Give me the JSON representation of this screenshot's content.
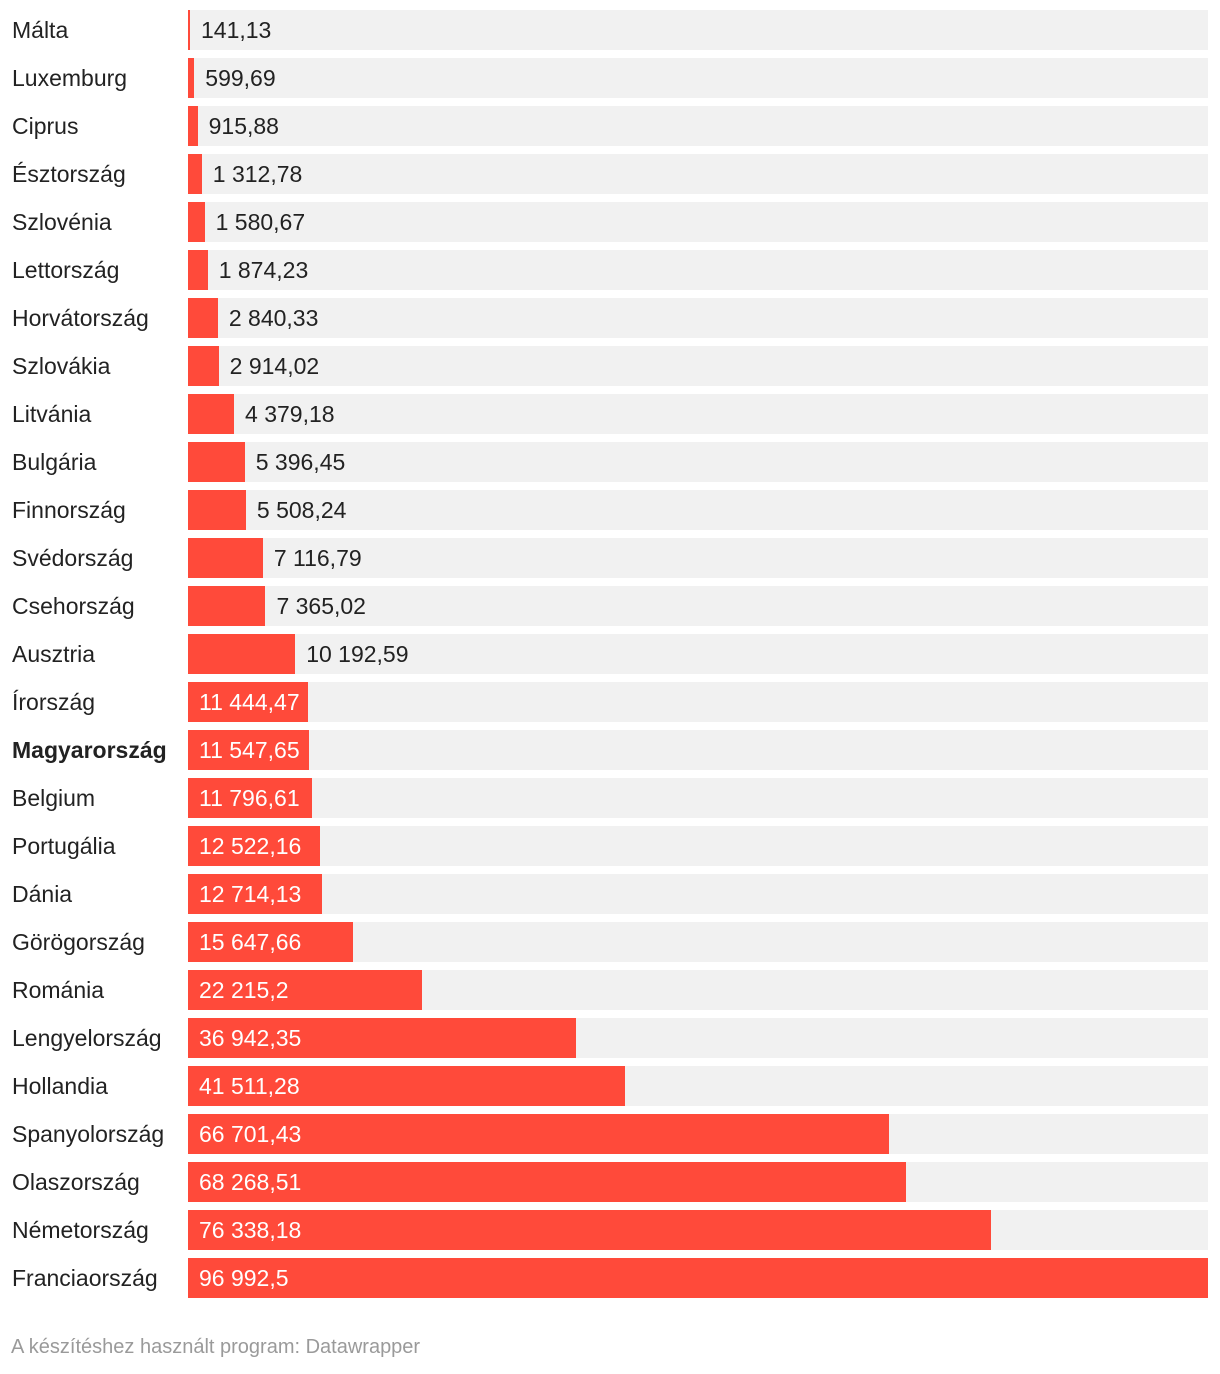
{
  "chart_data": {
    "type": "bar",
    "orientation": "horizontal",
    "highlight": "Magyarország",
    "bar_color": "#ff4a3a",
    "track_color": "#f1f1f1",
    "categories": [
      "Málta",
      "Luxemburg",
      "Ciprus",
      "Észtország",
      "Szlovénia",
      "Lettország",
      "Horvátország",
      "Szlovákia",
      "Litvánia",
      "Bulgária",
      "Finnország",
      "Svédország",
      "Csehország",
      "Ausztria",
      "Írország",
      "Magyarország",
      "Belgium",
      "Portugália",
      "Dánia",
      "Görögország",
      "Románia",
      "Lengyelország",
      "Hollandia",
      "Spanyolország",
      "Olaszország",
      "Németország",
      "Franciaország"
    ],
    "values": [
      141.13,
      599.69,
      915.88,
      1312.78,
      1580.67,
      1874.23,
      2840.33,
      2914.02,
      4379.18,
      5396.45,
      5508.24,
      7116.79,
      7365.02,
      10192.59,
      11444.47,
      11547.65,
      11796.61,
      12522.16,
      12714.13,
      15647.66,
      22215.2,
      36942.35,
      41511.28,
      66701.43,
      68268.51,
      76338.18,
      96992.5
    ],
    "value_labels": [
      "141,13",
      "599,69",
      "915,88",
      "1 312,78",
      "1 580,67",
      "1 874,23",
      "2 840,33",
      "2 914,02",
      "4 379,18",
      "5 396,45",
      "5 508,24",
      "7 116,79",
      "7 365,02",
      "10 192,59",
      "11 444,47",
      "11 547,65",
      "11 796,61",
      "12 522,16",
      "12 714,13",
      "15 647,66",
      "22 215,2",
      "36 942,35",
      "41 511,28",
      "66 701,43",
      "68 268,51",
      "76 338,18",
      "96 992,5"
    ],
    "xlim": [
      0,
      96992.5
    ]
  },
  "footer": {
    "credit": "A készítéshez használt program: Datawrapper"
  }
}
